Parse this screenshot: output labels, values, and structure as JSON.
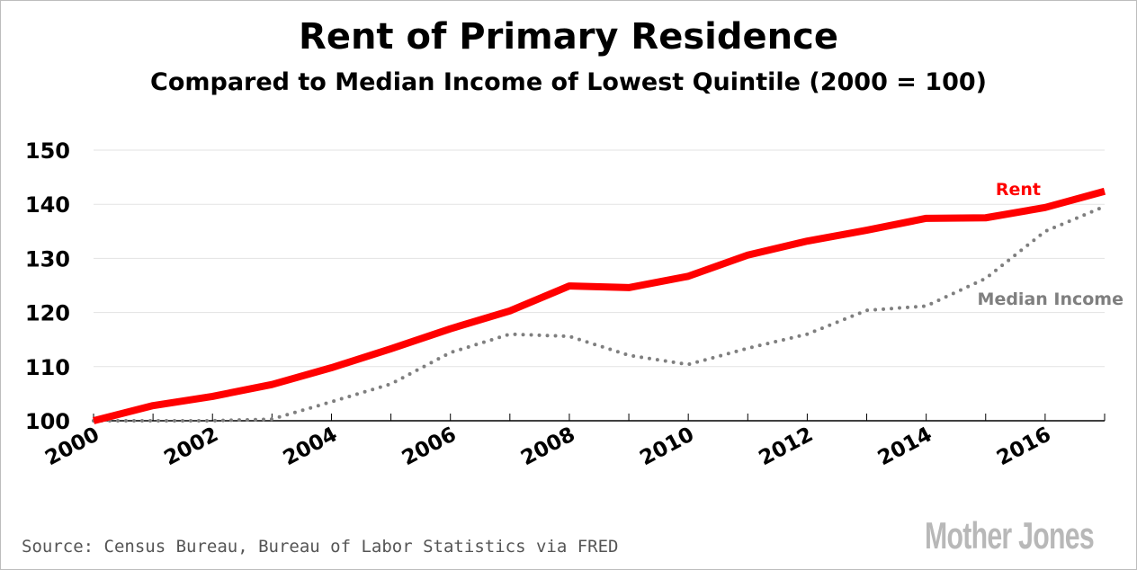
{
  "chart_data": {
    "type": "line",
    "title": "Rent of Primary Residence",
    "subtitle": "Compared to Median Income of Lowest Quintile (2000 = 100)",
    "x": [
      2000,
      2001,
      2002,
      2003,
      2004,
      2005,
      2006,
      2007,
      2008,
      2009,
      2010,
      2011,
      2012,
      2013,
      2014,
      2015,
      2016,
      2017
    ],
    "xtick_labels": [
      "2000",
      "2002",
      "2004",
      "2006",
      "2008",
      "2010",
      "2012",
      "2014",
      "2016"
    ],
    "ytick_labels": [
      "100",
      "110",
      "120",
      "130",
      "140",
      "150"
    ],
    "ylim": [
      100,
      150
    ],
    "xlim": [
      2000,
      2017
    ],
    "grid": true,
    "series": [
      {
        "name": "Rent",
        "color": "#ff0000",
        "style": "solid",
        "values": [
          100,
          102.8,
          104.5,
          106.7,
          109.8,
          113.3,
          117.0,
          120.3,
          124.9,
          124.6,
          126.7,
          130.6,
          133.2,
          135.2,
          137.4,
          137.5,
          139.4,
          142.4
        ]
      },
      {
        "name": "Median Income",
        "color": "#7f7f7f",
        "style": "dotted",
        "values": [
          100,
          100,
          100,
          100.3,
          103.5,
          106.8,
          112.6,
          116.0,
          115.6,
          112.1,
          110.4,
          113.4,
          116.0,
          120.4,
          121.2,
          126.3,
          135.0,
          139.6
        ]
      }
    ]
  },
  "source": "Source: Census Bureau, Bureau of Labor Statistics via FRED",
  "logo": "Mother Jones"
}
